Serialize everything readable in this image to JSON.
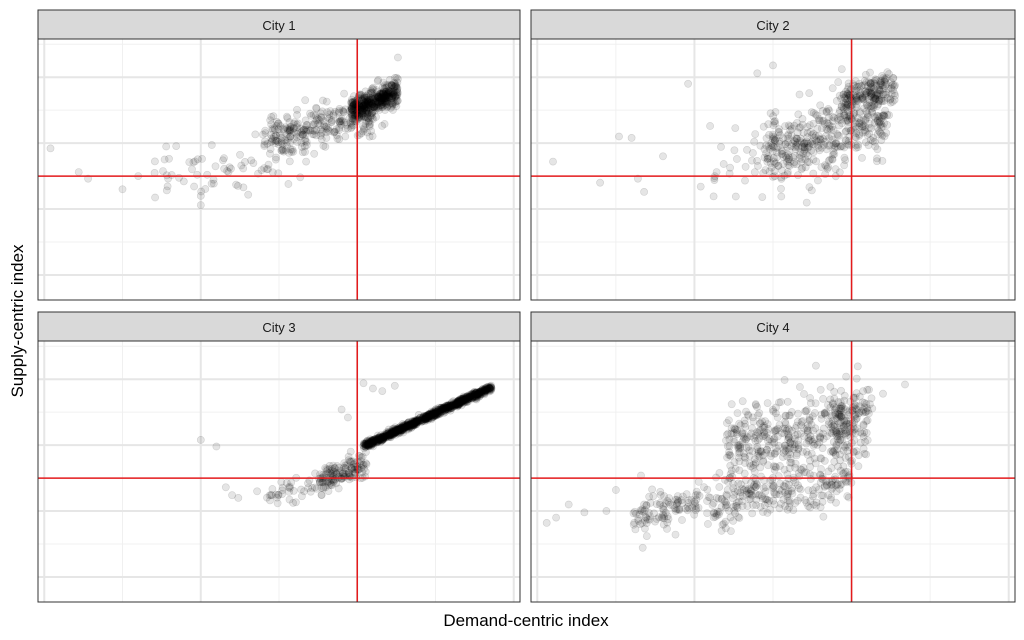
{
  "chart_data": {
    "type": "scatter",
    "layout": "facet-grid 2x2",
    "xlabel": "Demand-centric index",
    "ylabel": "Supply-centric index",
    "x_tick_labels_shown": false,
    "y_tick_labels_shown": false,
    "xlim": [
      -1.02,
      0.52
    ],
    "ylim": [
      -0.94,
      1.04
    ],
    "grid": true,
    "legend": "none",
    "reference_lines": {
      "x": 0,
      "y": 0,
      "color": "#e41a1c"
    },
    "point_color": "#000000",
    "point_alpha": 0.1,
    "facets": [
      {
        "label": "City 1",
        "clusters": [
          {
            "x_mean": 0.03,
            "y_mean": 0.55,
            "count": 420,
            "slope": 0.82,
            "spread": 0.05,
            "x_range": [
              -0.02,
              0.13
            ]
          },
          {
            "x_mean": -0.12,
            "y_mean": 0.38,
            "count": 260,
            "slope": 0.55,
            "spread": 0.08,
            "x_range": [
              -0.3,
              0.05
            ]
          },
          {
            "x_mean": -0.35,
            "y_mean": 0.1,
            "count": 70,
            "slope": 0.3,
            "spread": 0.1,
            "x_range": [
              -0.65,
              -0.15
            ]
          }
        ],
        "outliers": [
          {
            "x": -0.98,
            "y": 0.21
          },
          {
            "x": -0.89,
            "y": 0.03
          },
          {
            "x": -0.86,
            "y": -0.02
          },
          {
            "x": -0.75,
            "y": -0.1
          },
          {
            "x": -0.7,
            "y": 0.0
          },
          {
            "x": -0.5,
            "y": -0.22
          },
          {
            "x": -0.5,
            "y": -0.15
          },
          {
            "x": -0.22,
            "y": -0.06
          },
          {
            "x": 0.13,
            "y": 0.9
          }
        ]
      },
      {
        "label": "City 2",
        "clusters": [
          {
            "x_mean": -0.06,
            "y_mean": 0.32,
            "count": 380,
            "slope": 0.7,
            "spread": 0.12,
            "x_range": [
              -0.28,
              0.12
            ]
          },
          {
            "x_mean": 0.05,
            "y_mean": 0.62,
            "count": 180,
            "slope": 0.6,
            "spread": 0.07,
            "x_range": [
              -0.04,
              0.14
            ]
          },
          {
            "x_mean": -0.23,
            "y_mean": 0.18,
            "count": 60,
            "slope": 0.4,
            "spread": 0.14,
            "x_range": [
              -0.45,
              -0.05
            ]
          }
        ],
        "outliers": [
          {
            "x": -0.95,
            "y": 0.11
          },
          {
            "x": -0.8,
            "y": -0.05
          },
          {
            "x": -0.74,
            "y": 0.3
          },
          {
            "x": -0.7,
            "y": 0.29
          },
          {
            "x": -0.68,
            "y": -0.02
          },
          {
            "x": -0.66,
            "y": -0.12
          },
          {
            "x": -0.6,
            "y": 0.15
          },
          {
            "x": -0.52,
            "y": 0.7
          },
          {
            "x": -0.48,
            "y": -0.08
          },
          {
            "x": -0.45,
            "y": 0.38
          },
          {
            "x": -0.3,
            "y": 0.78
          },
          {
            "x": -0.25,
            "y": 0.84
          }
        ]
      },
      {
        "label": "City 3",
        "clusters": [
          {
            "x_mean": 0.22,
            "y_mean": 0.46,
            "count": 950,
            "slope": 1.09,
            "spread": 0.012,
            "x_range": [
              0.02,
              0.43
            ]
          },
          {
            "x_mean": -0.03,
            "y_mean": 0.05,
            "count": 130,
            "slope": 0.9,
            "spread": 0.05,
            "x_range": [
              -0.12,
              0.03
            ]
          },
          {
            "x_mean": -0.2,
            "y_mean": -0.08,
            "count": 45,
            "slope": 0.4,
            "spread": 0.05,
            "x_range": [
              -0.3,
              -0.1
            ]
          }
        ],
        "outliers": [
          {
            "x": -0.5,
            "y": 0.29
          },
          {
            "x": -0.45,
            "y": 0.24
          },
          {
            "x": -0.42,
            "y": -0.07
          },
          {
            "x": -0.4,
            "y": -0.13
          },
          {
            "x": -0.38,
            "y": -0.15
          },
          {
            "x": -0.32,
            "y": -0.1
          },
          {
            "x": -0.05,
            "y": 0.52
          },
          {
            "x": -0.03,
            "y": 0.46
          },
          {
            "x": 0.02,
            "y": 0.72
          },
          {
            "x": 0.05,
            "y": 0.68
          },
          {
            "x": 0.08,
            "y": 0.66
          },
          {
            "x": 0.12,
            "y": 0.7
          }
        ]
      },
      {
        "label": "City 4",
        "clusters": [
          {
            "x_mean": -0.33,
            "y_mean": -0.14,
            "count": 360,
            "slope": 0.45,
            "spread": 0.09,
            "x_range": [
              -0.7,
              0.0
            ]
          },
          {
            "x_mean": -0.1,
            "y_mean": 0.35,
            "count": 420,
            "slope": 0.35,
            "spread": 0.14,
            "x_range": [
              -0.4,
              0.05
            ]
          },
          {
            "x_mean": 0.0,
            "y_mean": 0.5,
            "count": 60,
            "slope": 0.6,
            "spread": 0.08,
            "x_range": [
              -0.06,
              0.07
            ]
          }
        ],
        "outliers": [
          {
            "x": -0.97,
            "y": -0.34
          },
          {
            "x": -0.94,
            "y": -0.3
          },
          {
            "x": -0.9,
            "y": -0.2
          },
          {
            "x": -0.85,
            "y": -0.26
          },
          {
            "x": -0.78,
            "y": -0.25
          },
          {
            "x": -0.75,
            "y": -0.09
          },
          {
            "x": -0.67,
            "y": 0.02
          },
          {
            "x": -0.66,
            "y": -0.2
          },
          {
            "x": -0.62,
            "y": -0.31
          },
          {
            "x": 0.05,
            "y": 0.67
          },
          {
            "x": 0.1,
            "y": 0.64
          },
          {
            "x": 0.17,
            "y": 0.71
          }
        ]
      }
    ]
  }
}
